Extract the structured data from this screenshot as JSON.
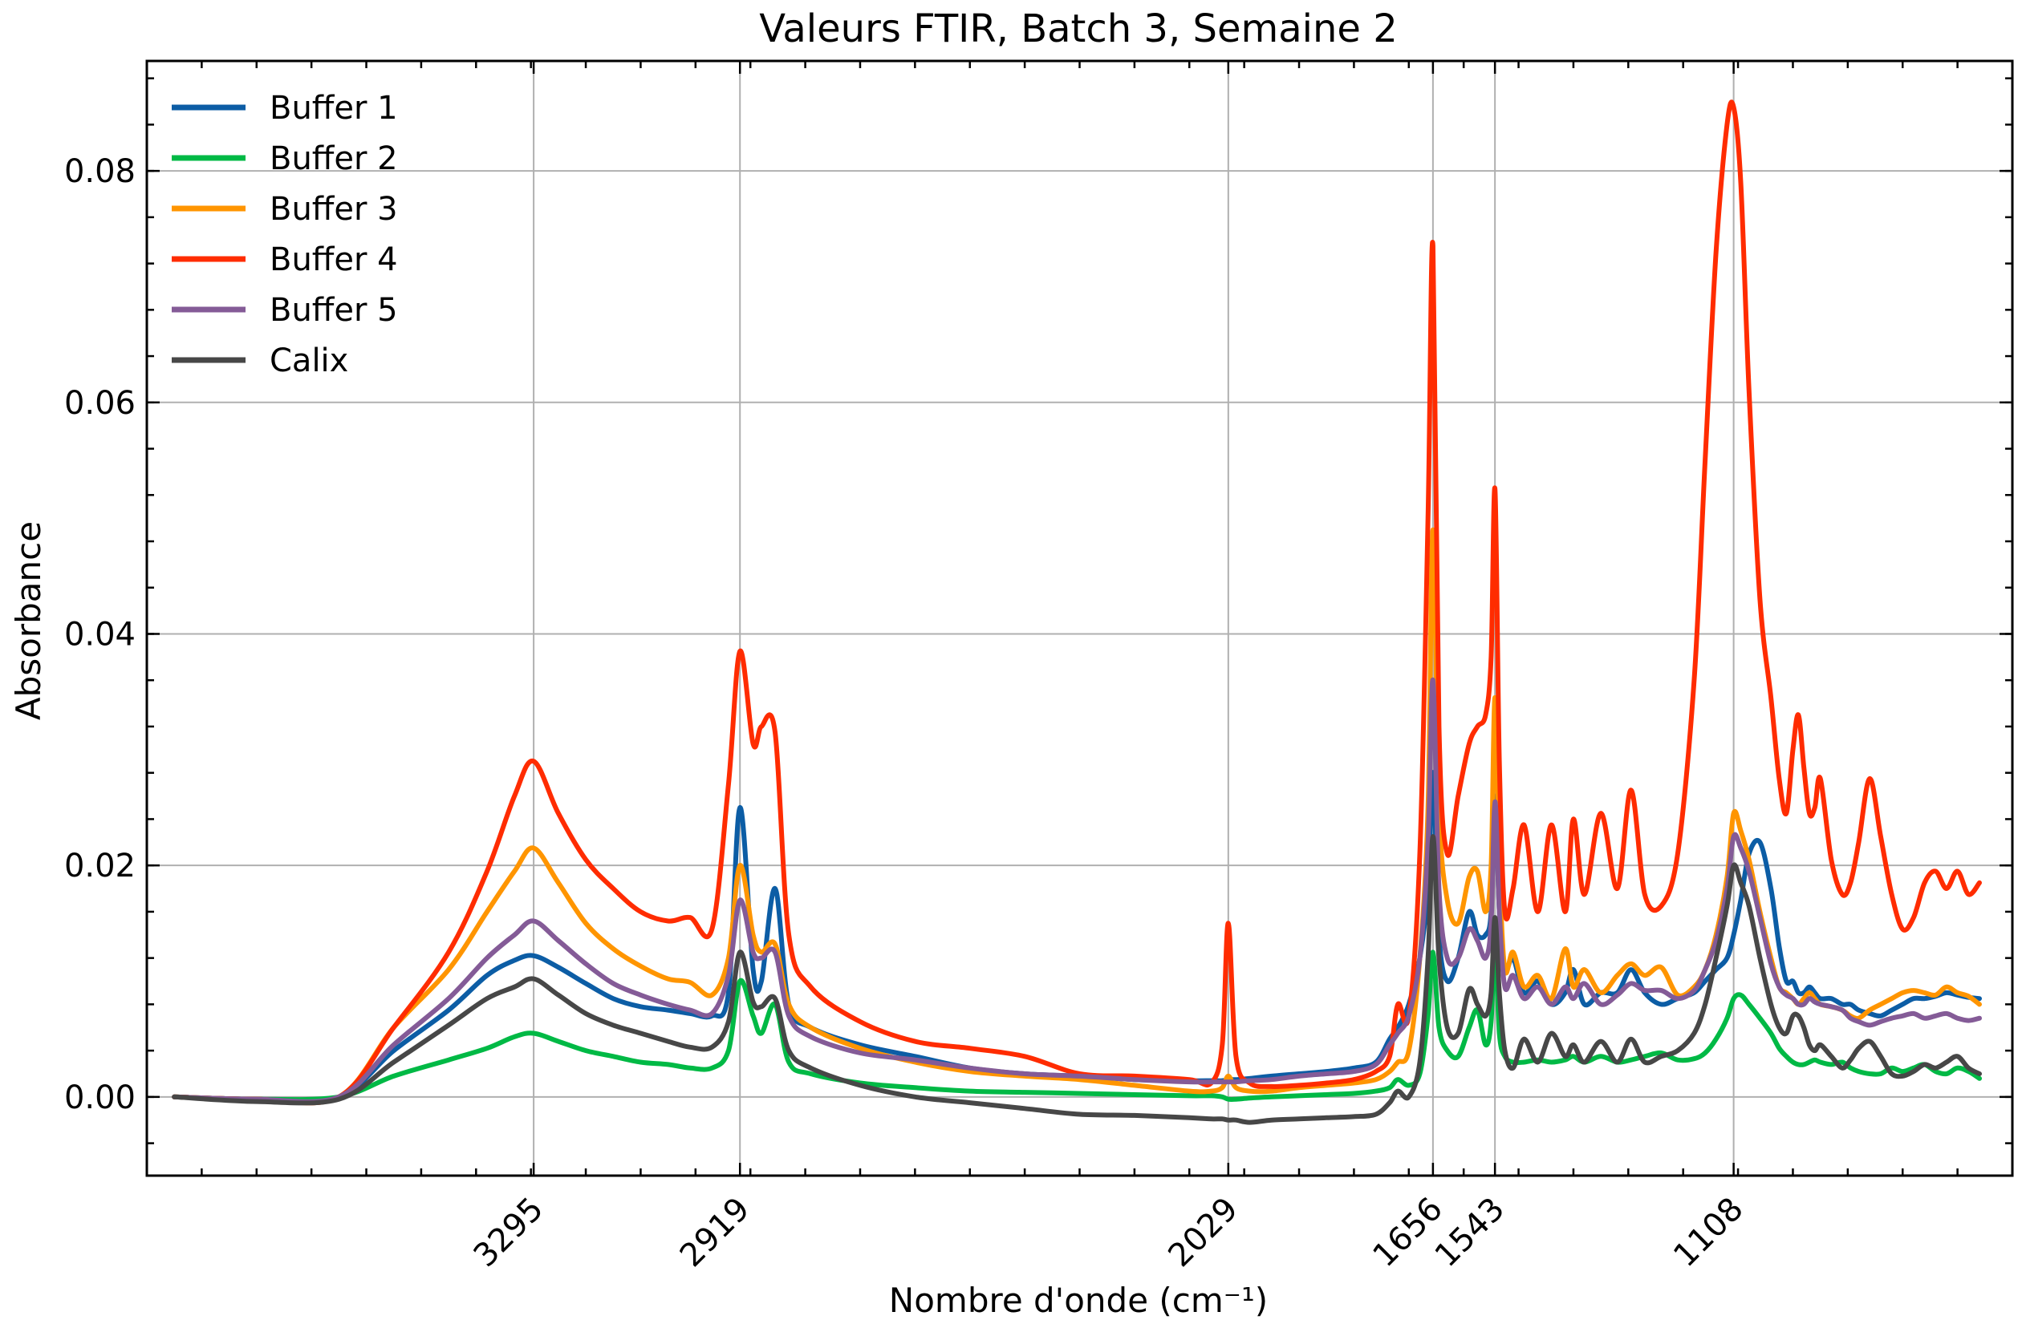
{
  "chart_data": {
    "type": "line",
    "title": "Valeurs FTIR, Batch 3, Semaine 2",
    "xlabel": "Nombre d'onde (cm⁻¹)",
    "ylabel": "Absorbance",
    "x_reversed": true,
    "xlim": [
      4000,
      600
    ],
    "ylim": [
      -0.0068,
      0.0895
    ],
    "xticks": [
      3295,
      2919,
      2029,
      1656,
      1543,
      1108
    ],
    "xtick_labels": [
      "3295",
      "2919",
      "2029",
      "1656",
      "1543",
      "1108"
    ],
    "yticks": [
      0.0,
      0.02,
      0.04,
      0.06,
      0.08
    ],
    "ytick_labels": [
      "0.00",
      "0.02",
      "0.04",
      "0.06",
      "0.08"
    ],
    "grid": true,
    "legend_position": "top-left",
    "x": [
      3950,
      3800,
      3650,
      3550,
      3450,
      3380,
      3330,
      3295,
      3250,
      3200,
      3150,
      3100,
      3050,
      3010,
      2970,
      2940,
      2919,
      2895,
      2880,
      2855,
      2830,
      2790,
      2700,
      2600,
      2500,
      2400,
      2300,
      2200,
      2100,
      2060,
      2040,
      2029,
      2015,
      1990,
      1950,
      1900,
      1850,
      1800,
      1760,
      1735,
      1720,
      1700,
      1680,
      1665,
      1656,
      1645,
      1630,
      1610,
      1590,
      1575,
      1560,
      1550,
      1543,
      1535,
      1525,
      1510,
      1490,
      1465,
      1440,
      1415,
      1400,
      1380,
      1350,
      1320,
      1295,
      1270,
      1240,
      1210,
      1180,
      1160,
      1140,
      1120,
      1108,
      1095,
      1080,
      1060,
      1040,
      1025,
      1012,
      1000,
      990,
      980,
      970,
      960,
      950,
      930,
      910,
      895,
      880,
      860,
      840,
      820,
      800,
      780,
      760,
      740,
      720,
      700,
      680,
      660
    ],
    "series": [
      {
        "name": "Buffer 1",
        "color": "#0C5DA5",
        "values": [
          0.0,
          -0.0002,
          0.0,
          0.004,
          0.0075,
          0.0105,
          0.0118,
          0.0122,
          0.0112,
          0.0098,
          0.0085,
          0.0078,
          0.0075,
          0.0072,
          0.007,
          0.009,
          0.025,
          0.011,
          0.01,
          0.018,
          0.008,
          0.006,
          0.0045,
          0.0035,
          0.0025,
          0.002,
          0.0018,
          0.0015,
          0.0014,
          0.0014,
          0.0014,
          0.0015,
          0.0015,
          0.0016,
          0.0018,
          0.002,
          0.0022,
          0.0025,
          0.003,
          0.005,
          0.006,
          0.008,
          0.012,
          0.018,
          0.028,
          0.014,
          0.01,
          0.012,
          0.016,
          0.014,
          0.014,
          0.016,
          0.026,
          0.016,
          0.011,
          0.012,
          0.009,
          0.01,
          0.008,
          0.009,
          0.011,
          0.008,
          0.009,
          0.009,
          0.011,
          0.009,
          0.008,
          0.0085,
          0.009,
          0.01,
          0.011,
          0.012,
          0.014,
          0.017,
          0.021,
          0.022,
          0.018,
          0.013,
          0.01,
          0.01,
          0.009,
          0.009,
          0.0095,
          0.009,
          0.0085,
          0.0085,
          0.008,
          0.008,
          0.0075,
          0.0072,
          0.007,
          0.0075,
          0.008,
          0.0085,
          0.0085,
          0.0087,
          0.009,
          0.0088,
          0.0086,
          0.0085
        ]
      },
      {
        "name": "Buffer 2",
        "color": "#00B945",
        "values": [
          0.0,
          -0.0002,
          0.0,
          0.0018,
          0.0032,
          0.0042,
          0.0052,
          0.0055,
          0.0048,
          0.004,
          0.0035,
          0.003,
          0.0028,
          0.0025,
          0.0025,
          0.004,
          0.01,
          0.007,
          0.0055,
          0.008,
          0.003,
          0.002,
          0.0012,
          0.0008,
          0.0005,
          0.0004,
          0.0003,
          0.0002,
          0.0001,
          0.0001,
          0.0,
          -0.0002,
          -0.0002,
          -0.0001,
          0.0,
          0.0001,
          0.0002,
          0.0003,
          0.0005,
          0.0008,
          0.0015,
          0.001,
          0.002,
          0.007,
          0.0125,
          0.006,
          0.004,
          0.0035,
          0.006,
          0.0075,
          0.0045,
          0.0065,
          0.0135,
          0.0055,
          0.0035,
          0.003,
          0.003,
          0.0032,
          0.003,
          0.0032,
          0.0035,
          0.003,
          0.0035,
          0.003,
          0.0032,
          0.0035,
          0.0038,
          0.0032,
          0.0033,
          0.0038,
          0.005,
          0.0068,
          0.0085,
          0.0088,
          0.008,
          0.0068,
          0.0055,
          0.0042,
          0.0035,
          0.003,
          0.0028,
          0.0028,
          0.003,
          0.0032,
          0.003,
          0.0028,
          0.003,
          0.0025,
          0.0022,
          0.002,
          0.002,
          0.0025,
          0.0022,
          0.0025,
          0.0028,
          0.0022,
          0.002,
          0.0025,
          0.0022,
          0.0016
        ]
      },
      {
        "name": "Buffer 3",
        "color": "#FF9500",
        "values": [
          0.0,
          -0.0002,
          0.0,
          0.006,
          0.011,
          0.016,
          0.0195,
          0.0215,
          0.0185,
          0.015,
          0.0128,
          0.0113,
          0.0102,
          0.0099,
          0.0088,
          0.012,
          0.02,
          0.014,
          0.0125,
          0.0132,
          0.008,
          0.006,
          0.0042,
          0.003,
          0.0022,
          0.0018,
          0.0015,
          0.001,
          0.0005,
          0.0005,
          0.0008,
          0.0018,
          0.0008,
          0.0005,
          0.0005,
          0.0008,
          0.001,
          0.0012,
          0.0015,
          0.0022,
          0.003,
          0.004,
          0.012,
          0.025,
          0.049,
          0.025,
          0.017,
          0.015,
          0.019,
          0.0195,
          0.016,
          0.02,
          0.0345,
          0.02,
          0.011,
          0.0125,
          0.0095,
          0.0105,
          0.0085,
          0.0128,
          0.0095,
          0.011,
          0.009,
          0.0105,
          0.0115,
          0.0105,
          0.0112,
          0.0088,
          0.0095,
          0.011,
          0.014,
          0.019,
          0.0245,
          0.023,
          0.0205,
          0.016,
          0.012,
          0.0095,
          0.009,
          0.0085,
          0.008,
          0.0085,
          0.009,
          0.0085,
          0.008,
          0.0078,
          0.0075,
          0.007,
          0.0068,
          0.0075,
          0.008,
          0.0085,
          0.009,
          0.0092,
          0.009,
          0.0088,
          0.0095,
          0.009,
          0.0087,
          0.008
        ]
      },
      {
        "name": "Buffer 4",
        "color": "#FF2C00",
        "values": [
          0.0,
          -0.0002,
          0.0,
          0.006,
          0.0125,
          0.0195,
          0.026,
          0.029,
          0.0245,
          0.0205,
          0.018,
          0.016,
          0.0152,
          0.0155,
          0.0145,
          0.027,
          0.0385,
          0.0305,
          0.032,
          0.0315,
          0.014,
          0.0095,
          0.0065,
          0.0048,
          0.0042,
          0.0035,
          0.002,
          0.0018,
          0.0015,
          0.0012,
          0.0045,
          0.015,
          0.0035,
          0.0012,
          0.0009,
          0.001,
          0.0012,
          0.0015,
          0.0022,
          0.0035,
          0.008,
          0.007,
          0.021,
          0.05,
          0.0735,
          0.032,
          0.021,
          0.026,
          0.0305,
          0.032,
          0.033,
          0.038,
          0.0525,
          0.029,
          0.016,
          0.018,
          0.0235,
          0.016,
          0.0235,
          0.016,
          0.024,
          0.0175,
          0.0245,
          0.018,
          0.0265,
          0.0175,
          0.0165,
          0.021,
          0.036,
          0.055,
          0.073,
          0.084,
          0.0855,
          0.079,
          0.061,
          0.043,
          0.0345,
          0.0275,
          0.0245,
          0.03,
          0.033,
          0.0285,
          0.0245,
          0.025,
          0.0275,
          0.0205,
          0.0175,
          0.0185,
          0.022,
          0.0275,
          0.0225,
          0.0175,
          0.0145,
          0.0155,
          0.0185,
          0.0195,
          0.018,
          0.0195,
          0.0175,
          0.0185
        ]
      },
      {
        "name": "Buffer 5",
        "color": "#845B97",
        "values": [
          0.0,
          -0.0002,
          0.0,
          0.0045,
          0.0085,
          0.012,
          0.014,
          0.0152,
          0.0135,
          0.0115,
          0.0098,
          0.0088,
          0.008,
          0.0075,
          0.0072,
          0.0105,
          0.017,
          0.0125,
          0.012,
          0.0125,
          0.007,
          0.0052,
          0.0038,
          0.0032,
          0.0025,
          0.002,
          0.0018,
          0.0015,
          0.0013,
          0.0013,
          0.0013,
          0.0013,
          0.0013,
          0.0014,
          0.0015,
          0.0018,
          0.002,
          0.0022,
          0.0028,
          0.0045,
          0.0055,
          0.007,
          0.012,
          0.022,
          0.036,
          0.018,
          0.012,
          0.012,
          0.0145,
          0.0135,
          0.012,
          0.015,
          0.0255,
          0.016,
          0.0095,
          0.0105,
          0.0085,
          0.0095,
          0.008,
          0.0095,
          0.0085,
          0.0098,
          0.008,
          0.0088,
          0.0098,
          0.0092,
          0.0092,
          0.0085,
          0.0092,
          0.011,
          0.0135,
          0.018,
          0.0225,
          0.0215,
          0.0195,
          0.0155,
          0.0115,
          0.0095,
          0.0088,
          0.0085,
          0.008,
          0.008,
          0.0085,
          0.0082,
          0.008,
          0.0078,
          0.0075,
          0.0068,
          0.0065,
          0.0062,
          0.0065,
          0.0068,
          0.007,
          0.0072,
          0.0068,
          0.007,
          0.0072,
          0.0068,
          0.0066,
          0.0068
        ]
      },
      {
        "name": "Calix",
        "color": "#474747",
        "values": [
          0.0,
          -0.0004,
          -0.0002,
          0.003,
          0.0062,
          0.0085,
          0.0095,
          0.0102,
          0.0088,
          0.0072,
          0.0062,
          0.0055,
          0.0048,
          0.0043,
          0.0043,
          0.0065,
          0.0125,
          0.0082,
          0.0078,
          0.0085,
          0.004,
          0.0025,
          0.001,
          0.0,
          -0.0005,
          -0.001,
          -0.0015,
          -0.0016,
          -0.0018,
          -0.0019,
          -0.0019,
          -0.002,
          -0.002,
          -0.0022,
          -0.002,
          -0.0019,
          -0.0018,
          -0.0017,
          -0.0015,
          -0.0005,
          0.0005,
          0.0,
          0.003,
          0.012,
          0.0225,
          0.012,
          0.006,
          0.0055,
          0.0093,
          0.008,
          0.007,
          0.009,
          0.0155,
          0.009,
          0.004,
          0.0025,
          0.005,
          0.003,
          0.0055,
          0.0035,
          0.0045,
          0.003,
          0.0048,
          0.003,
          0.005,
          0.003,
          0.0035,
          0.004,
          0.0055,
          0.008,
          0.012,
          0.0165,
          0.02,
          0.0185,
          0.0165,
          0.012,
          0.008,
          0.006,
          0.0055,
          0.007,
          0.007,
          0.006,
          0.0045,
          0.004,
          0.0045,
          0.0035,
          0.0025,
          0.0032,
          0.0042,
          0.0048,
          0.0035,
          0.002,
          0.0018,
          0.0022,
          0.0028,
          0.0025,
          0.003,
          0.0035,
          0.0025,
          0.002
        ]
      }
    ]
  }
}
